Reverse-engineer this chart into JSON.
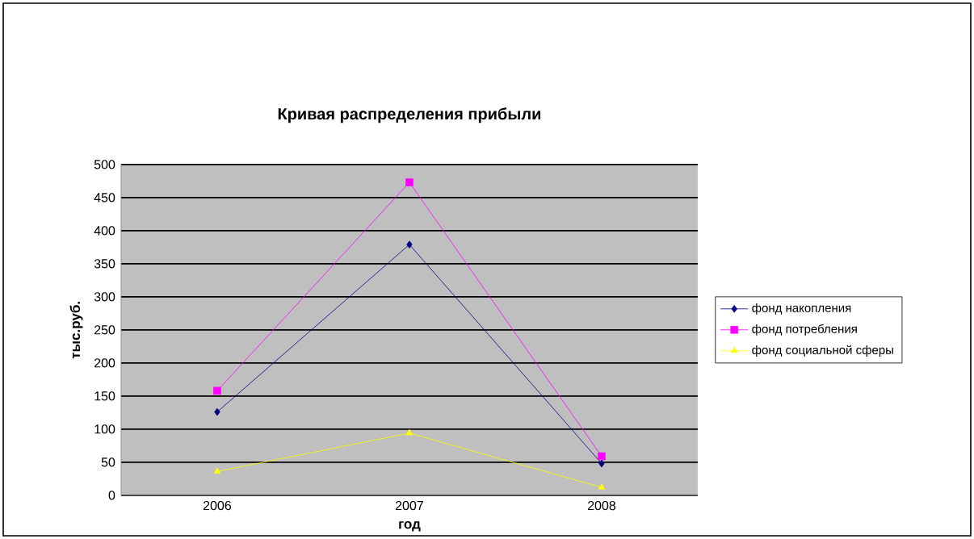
{
  "chart_data": {
    "type": "line",
    "title": "Кривая распределения прибыли",
    "xlabel": "год",
    "ylabel": "тыс.руб.",
    "categories": [
      "2006",
      "2007",
      "2008"
    ],
    "series": [
      {
        "name": "фонд  накопления",
        "color": "#000080",
        "marker": "diamond",
        "values": [
          126,
          379,
          48
        ]
      },
      {
        "name": "фонд  потребления",
        "color": "#ff00ff",
        "marker": "square",
        "values": [
          158,
          473,
          59
        ]
      },
      {
        "name": "фонд  социальной сферы",
        "color": "#ffff00",
        "marker": "triangle",
        "values": [
          36,
          94,
          12
        ]
      }
    ],
    "ylim": [
      0,
      500
    ],
    "yticks": [
      0,
      50,
      100,
      150,
      200,
      250,
      300,
      350,
      400,
      450,
      500
    ],
    "grid": "y",
    "legend": "right",
    "line_style": "solid"
  }
}
